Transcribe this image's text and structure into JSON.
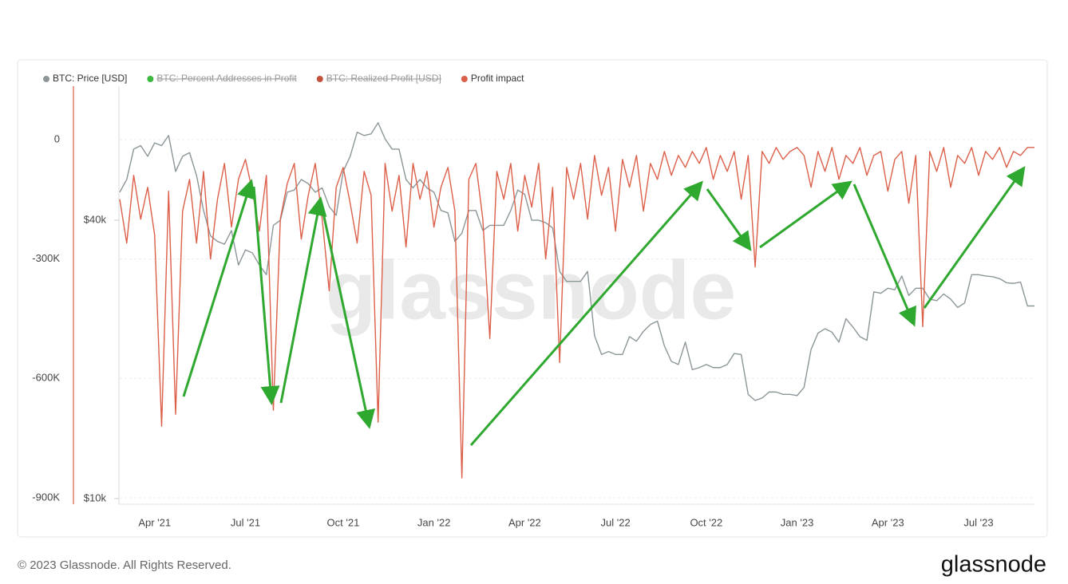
{
  "chart_data": {
    "type": "line",
    "watermark": "glassnode",
    "footer": {
      "copyright": "© 2023 Glassnode. All Rights Reserved.",
      "logo": "glassnode"
    },
    "categories": [
      null,
      null,
      null,
      null,
      null,
      "Apr '21",
      null,
      null,
      null,
      null,
      null,
      null,
      null,
      null,
      null,
      null,
      null,
      null,
      "Jul '21",
      null,
      null,
      null,
      null,
      null,
      null,
      null,
      null,
      null,
      null,
      null,
      null,
      null,
      "Oct '21",
      null,
      null,
      null,
      null,
      null,
      null,
      null,
      null,
      null,
      null,
      null,
      null,
      "Jan '22",
      null,
      null,
      null,
      null,
      null,
      null,
      null,
      null,
      null,
      null,
      null,
      null,
      "Apr '22",
      null,
      null,
      null,
      null,
      null,
      null,
      null,
      null,
      null,
      null,
      null,
      null,
      "Jul '22",
      null,
      null,
      null,
      null,
      null,
      null,
      null,
      null,
      null,
      null,
      null,
      null,
      "Oct '22",
      null,
      null,
      null,
      null,
      null,
      null,
      null,
      null,
      null,
      null,
      null,
      null,
      "Jan '23",
      null,
      null,
      null,
      null,
      null,
      null,
      null,
      null,
      null,
      null,
      null,
      null,
      "Apr '23",
      null,
      null,
      null,
      null,
      null,
      null,
      null,
      null,
      null,
      null,
      null,
      null,
      "Jul '23",
      null,
      null,
      null,
      null,
      null,
      null,
      null,
      null
    ],
    "series": [
      {
        "name": "BTC: Price [USD]",
        "color": "#8c9699",
        "axis": "y2",
        "values": [
          46000,
          49000,
          57000,
          58000,
          55000,
          58800,
          58000,
          61000,
          51000,
          55000,
          56000,
          50000,
          42000,
          37000,
          36000,
          35500,
          38000,
          32000,
          34500,
          34000,
          32000,
          30500,
          39000,
          40000,
          46000,
          46500,
          49000,
          48000,
          46000,
          47000,
          42800,
          41000,
          51000,
          55000,
          62000,
          61000,
          61500,
          65000,
          60000,
          57000,
          57000,
          49000,
          47000,
          49000,
          47000,
          46000,
          42000,
          41500,
          36000,
          37500,
          42000,
          42000,
          38000,
          39000,
          39000,
          39000,
          42000,
          46500,
          45500,
          40000,
          40000,
          39500,
          38500,
          31000,
          29500,
          29500,
          29500,
          31000,
          22500,
          20500,
          20800,
          20500,
          20500,
          22400,
          21900,
          23000,
          23800,
          24200,
          21400,
          19800,
          19500,
          21800,
          19000,
          19200,
          19500,
          19200,
          19200,
          19500,
          20600,
          20500,
          16800,
          16300,
          16500,
          17000,
          17000,
          16800,
          16800,
          16700,
          17400,
          21000,
          22800,
          23300,
          22900,
          21800,
          24500,
          23500,
          22400,
          22000,
          28000,
          27800,
          28500,
          28300,
          30300,
          27500,
          28500,
          28500,
          27000,
          26800,
          27700,
          27000,
          25900,
          26500,
          30500,
          30500,
          30300,
          30200,
          29900,
          29300,
          29200,
          29400,
          26100,
          26100
        ]
      },
      {
        "name": "BTC: Percent Addresses in Profit",
        "color": "#3cb93c",
        "hidden": true
      },
      {
        "name": "BTC: Realized Profit [USD]",
        "color": "#c5503c",
        "hidden": true
      },
      {
        "name": "Profit impact",
        "color": "#dc5f49",
        "values": [
          -150000,
          -260000,
          -90000,
          -200000,
          -120000,
          -240000,
          -720000,
          -130000,
          -690000,
          -180000,
          -100000,
          -260000,
          -80000,
          -300000,
          -150000,
          -60000,
          -220000,
          -100000,
          -50000,
          -130000,
          -230000,
          -90000,
          -680000,
          -200000,
          -110000,
          -60000,
          -250000,
          -140000,
          -60000,
          -200000,
          -380000,
          -120000,
          -70000,
          -160000,
          -260000,
          -80000,
          -140000,
          -710000,
          -60000,
          -180000,
          -90000,
          -270000,
          -60000,
          -150000,
          -80000,
          -220000,
          -120000,
          -70000,
          -180000,
          -850000,
          -100000,
          -60000,
          -200000,
          -500000,
          -80000,
          -150000,
          -60000,
          -230000,
          -90000,
          -170000,
          -60000,
          -300000,
          -120000,
          -560000,
          -70000,
          -150000,
          -60000,
          -200000,
          -40000,
          -140000,
          -70000,
          -230000,
          -50000,
          -120000,
          -40000,
          -180000,
          -60000,
          -100000,
          -30000,
          -90000,
          -40000,
          -70000,
          -30000,
          -60000,
          -20000,
          -100000,
          -40000,
          -80000,
          -30000,
          -150000,
          -40000,
          -320000,
          -30000,
          -60000,
          -20000,
          -50000,
          -30000,
          -20000,
          -40000,
          -120000,
          -30000,
          -80000,
          -20000,
          -100000,
          -40000,
          -60000,
          -20000,
          -90000,
          -40000,
          -30000,
          -130000,
          -50000,
          -30000,
          -160000,
          -40000,
          -470000,
          -30000,
          -80000,
          -20000,
          -120000,
          -40000,
          -60000,
          -20000,
          -90000,
          -30000,
          -50000,
          -20000,
          -70000,
          -30000,
          -40000,
          -20000,
          -20000
        ]
      }
    ],
    "ylim": [
      -912000,
      134000
    ],
    "yticks": [
      {
        "value": 0,
        "label": "0"
      },
      {
        "value": -300000,
        "label": "-300K"
      },
      {
        "value": -600000,
        "label": "-600K"
      },
      {
        "value": -900000,
        "label": "-900K"
      }
    ],
    "y2lim": [
      9800,
      78000
    ],
    "y2scale": "log",
    "y2ticks": [
      {
        "value": 40000,
        "label": "$40k"
      },
      {
        "value": 10000,
        "label": "$10k"
      }
    ],
    "grid": true,
    "legend": "top-left"
  }
}
